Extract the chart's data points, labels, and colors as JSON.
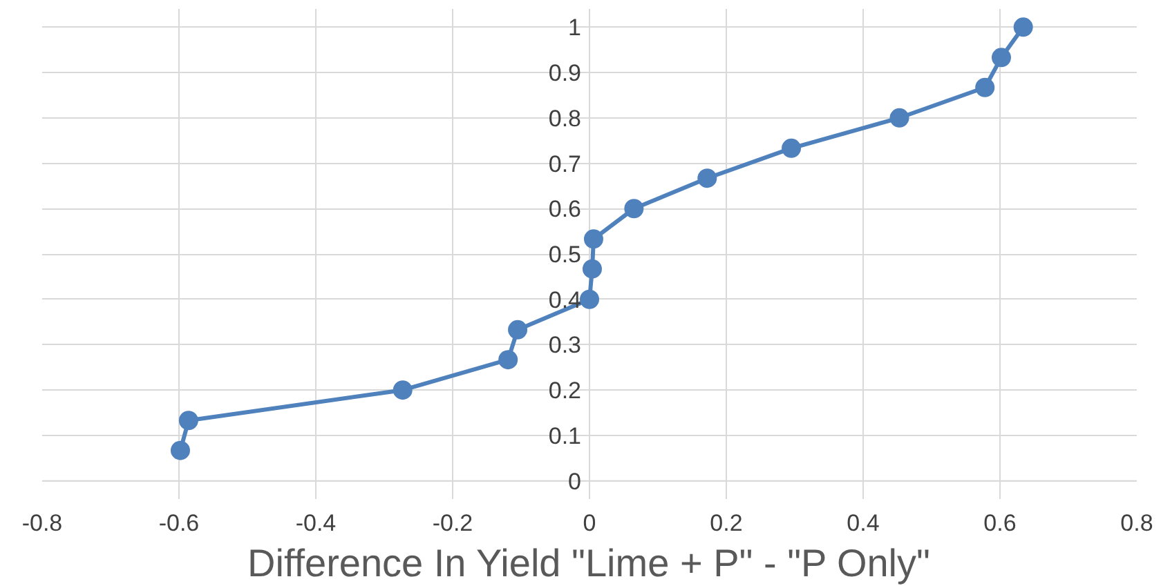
{
  "chart_data": {
    "type": "line",
    "xlabel": "Difference In Yield \"Lime + P\" - \"P Only\"",
    "x": [
      -0.598,
      -0.586,
      -0.273,
      -0.119,
      -0.105,
      0.0,
      0.004,
      0.006,
      0.065,
      0.172,
      0.295,
      0.453,
      0.578,
      0.602,
      0.634
    ],
    "series": [
      {
        "color": "#4f81bd",
        "values": [
          0.067,
          0.133,
          0.2,
          0.267,
          0.333,
          0.4,
          0.467,
          0.533,
          0.6,
          0.667,
          0.733,
          0.8,
          0.867,
          0.933,
          1.0
        ]
      }
    ],
    "xlim": [
      -0.8,
      0.8
    ],
    "ylim": [
      0,
      1
    ],
    "xticks": [
      -0.8,
      -0.6,
      -0.4,
      -0.2,
      0,
      0.2,
      0.4,
      0.6,
      0.8
    ],
    "yticks": [
      0,
      0.1,
      0.2,
      0.3,
      0.4,
      0.5,
      0.6,
      0.7,
      0.8,
      0.9,
      1
    ],
    "grid": true,
    "marker": "circle",
    "line_style": "solid"
  }
}
